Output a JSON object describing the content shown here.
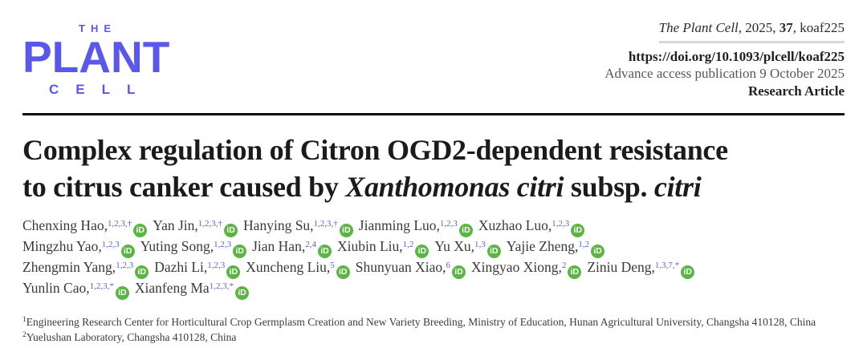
{
  "masthead": {
    "logo": {
      "line_the": "THE",
      "line_plant": "PLANT",
      "line_cell": "CELL"
    },
    "citation": {
      "journal_italic": "The Plant Cell",
      "middle": ", 2025, ",
      "volume_bold": "37",
      "tail": ", koaf225"
    },
    "doi": "https://doi.org/10.1093/plcell/koaf225",
    "advance_access": "Advance access publication 9 October 2025",
    "article_type": "Research Article"
  },
  "title": {
    "line1": "Complex regulation of Citron OGD2-dependent resistance",
    "line2_pre": "to citrus canker caused by ",
    "line2_italic1": "Xanthomonas citri",
    "line2_mid": " subsp. ",
    "line2_italic2": "citri"
  },
  "authors": {
    "orcid_label": "iD",
    "lines": [
      [
        {
          "name": "Chenxing Hao,",
          "sup": "1,2,3,†",
          "orcid": true
        },
        {
          "name": "Yan Jin,",
          "sup": "1,2,3,†",
          "orcid": true
        },
        {
          "name": "Hanying Su,",
          "sup": "1,2,3,†",
          "orcid": true
        },
        {
          "name": "Jianming Luo,",
          "sup": "1,2,3",
          "orcid": true
        },
        {
          "name": "Xuzhao Luo,",
          "sup": "1,2,3",
          "orcid": true
        }
      ],
      [
        {
          "name": "Mingzhu Yao,",
          "sup": "1,2,3",
          "orcid": true
        },
        {
          "name": "Yuting Song,",
          "sup": "1,2,3",
          "orcid": true
        },
        {
          "name": "Jian Han,",
          "sup": "2,4",
          "orcid": true
        },
        {
          "name": "Xiubin Liu,",
          "sup": "1,2",
          "orcid": true
        },
        {
          "name": "Yu Xu,",
          "sup": "1,3",
          "orcid": true
        },
        {
          "name": "Yajie Zheng,",
          "sup": "1,2",
          "orcid": true
        }
      ],
      [
        {
          "name": "Zhengmin Yang,",
          "sup": "1,2,3",
          "orcid": true
        },
        {
          "name": "Dazhi Li,",
          "sup": "1,2,3",
          "orcid": true
        },
        {
          "name": "Xuncheng Liu,",
          "sup": "5",
          "orcid": true
        },
        {
          "name": "Shunyuan Xiao,",
          "sup": "6",
          "orcid": true
        },
        {
          "name": "Xingyao Xiong,",
          "sup": "2",
          "orcid": true
        },
        {
          "name": "Ziniu Deng,",
          "sup": "1,3,7,*",
          "orcid": true
        }
      ],
      [
        {
          "name": "Yunlin Cao,",
          "sup": "1,2,3,*",
          "orcid": true
        },
        {
          "name": "Xianfeng Ma",
          "sup": "1,2,3,*",
          "orcid": true
        }
      ]
    ]
  },
  "affiliations": [
    {
      "sup": "1",
      "text": "Engineering Research Center for Horticultural Crop Germplasm Creation and New Variety Breeding, Ministry of Education, Hunan Agricultural University, Changsha 410128, China"
    },
    {
      "sup": "2",
      "text": "Yuelushan Laboratory, Changsha 410128, China"
    }
  ],
  "colors": {
    "logo_blue": "#5a58ea",
    "orcid_green": "#5bb543",
    "superscript_blue": "#5a5fd6",
    "rule_black": "#0f0f0f",
    "divider_gray": "#d8d8d8"
  }
}
